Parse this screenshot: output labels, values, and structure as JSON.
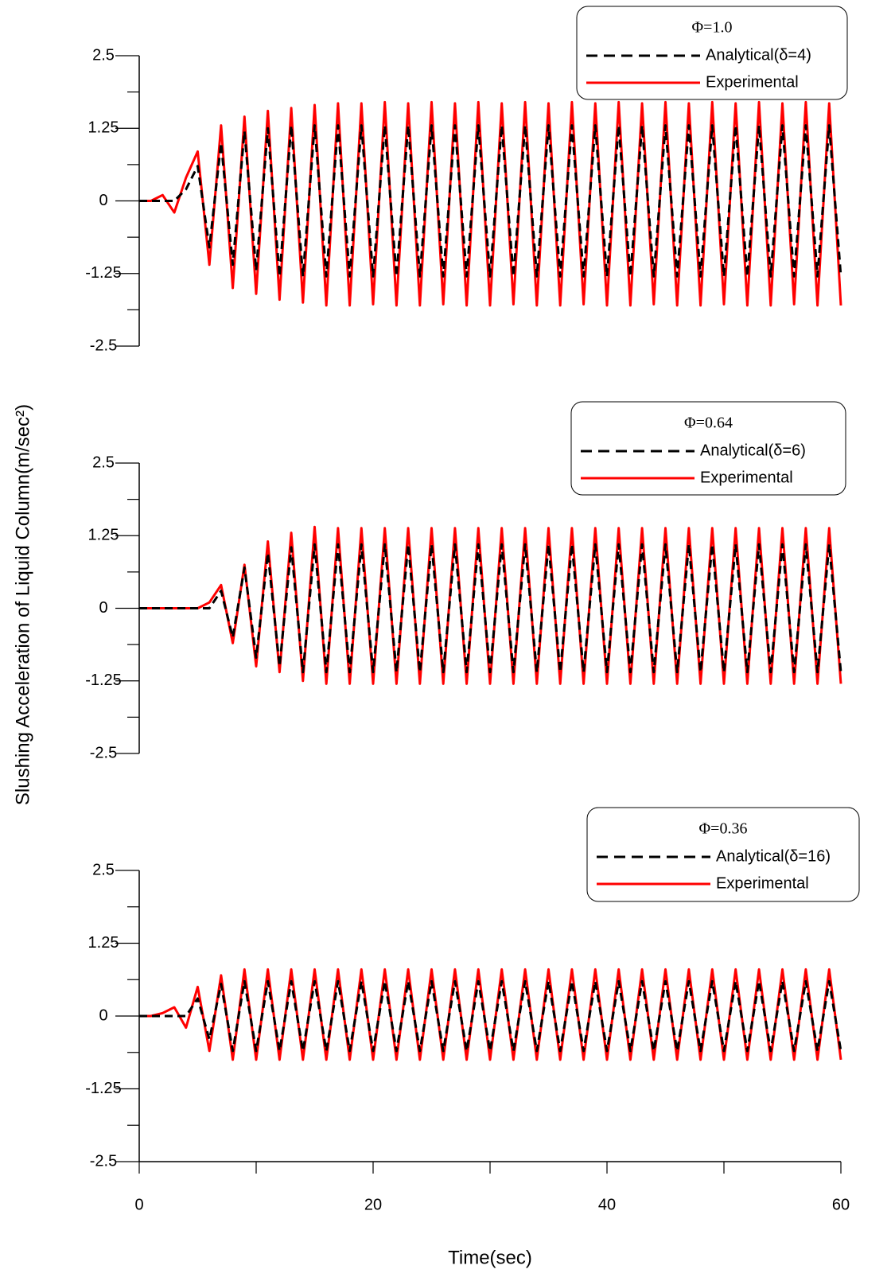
{
  "chart_data": [
    {
      "type": "line",
      "ylabel": "Slushing Acceleration of Liquid Column(m/sec²)",
      "legend_title": "Φ=1.0",
      "x": [
        0,
        1,
        2,
        3,
        4,
        5,
        6,
        7,
        8,
        9,
        10,
        11,
        12,
        13,
        14,
        15,
        16,
        17,
        18,
        19,
        20,
        21,
        22,
        23,
        24,
        25,
        26,
        27,
        28,
        29,
        30,
        31,
        32,
        33,
        34,
        35,
        36,
        37,
        38,
        39,
        40,
        41,
        42,
        43,
        44,
        45,
        46,
        47,
        48,
        49,
        50,
        51,
        52,
        53,
        54,
        55,
        56,
        57,
        58,
        59,
        60
      ],
      "xlim": [
        0,
        60
      ],
      "ylim": [
        -2.5,
        2.5
      ],
      "yticks": [
        -2.5,
        -1.25,
        0,
        1.25,
        2.5
      ],
      "yminorticks": [
        -1.875,
        -0.625,
        0.625,
        1.875
      ],
      "series": [
        {
          "name": "Experimental",
          "color": "#ff0000",
          "values": [
            0,
            0,
            0.1,
            -0.2,
            0.4,
            0.85,
            -1.1,
            1.3,
            -1.5,
            1.45,
            -1.6,
            1.55,
            -1.7,
            1.6,
            -1.75,
            1.65,
            -1.8,
            1.68,
            -1.8,
            1.68,
            -1.78,
            1.7,
            -1.8,
            1.68,
            -1.8,
            1.7,
            -1.78,
            1.68,
            -1.8,
            1.7,
            -1.8,
            1.68,
            -1.78,
            1.7,
            -1.8,
            1.68,
            -1.8,
            1.7,
            -1.78,
            1.68,
            -1.8,
            1.7,
            -1.8,
            1.68,
            -1.78,
            1.7,
            -1.8,
            1.68,
            -1.8,
            1.7,
            -1.78,
            1.68,
            -1.8,
            1.7,
            -1.8,
            1.68,
            -1.78,
            1.7,
            -1.8,
            1.68,
            -1.8
          ]
        },
        {
          "name": "Analytical(δ=4)",
          "color": "#000000",
          "dashed": true,
          "values": [
            0,
            0,
            0,
            0,
            0.2,
            0.6,
            -0.8,
            1.0,
            -1.1,
            1.2,
            -1.2,
            1.25,
            -1.3,
            1.3,
            -1.3,
            1.3,
            -1.3,
            1.3,
            -1.3,
            1.3,
            -1.3,
            1.3,
            -1.3,
            1.3,
            -1.3,
            1.3,
            -1.3,
            1.3,
            -1.3,
            1.3,
            -1.3,
            1.3,
            -1.3,
            1.3,
            -1.3,
            1.3,
            -1.3,
            1.3,
            -1.3,
            1.3,
            -1.3,
            1.3,
            -1.3,
            1.3,
            -1.3,
            1.3,
            -1.3,
            1.3,
            -1.3,
            1.3,
            -1.3,
            1.3,
            -1.3,
            1.3,
            -1.3,
            1.3,
            -1.3,
            1.3,
            -1.3,
            1.3,
            -1.3
          ]
        }
      ]
    },
    {
      "type": "line",
      "legend_title": "Φ=0.64",
      "x": [
        0,
        1,
        2,
        3,
        4,
        5,
        6,
        7,
        8,
        9,
        10,
        11,
        12,
        13,
        14,
        15,
        16,
        17,
        18,
        19,
        20,
        21,
        22,
        23,
        24,
        25,
        26,
        27,
        28,
        29,
        30,
        31,
        32,
        33,
        34,
        35,
        36,
        37,
        38,
        39,
        40,
        41,
        42,
        43,
        44,
        45,
        46,
        47,
        48,
        49,
        50,
        51,
        52,
        53,
        54,
        55,
        56,
        57,
        58,
        59,
        60
      ],
      "xlim": [
        0,
        60
      ],
      "ylim": [
        -2.5,
        2.5
      ],
      "yticks": [
        -2.5,
        -1.25,
        0,
        1.25,
        2.5
      ],
      "yminorticks": [
        -1.875,
        -0.625,
        0.625,
        1.875
      ],
      "series": [
        {
          "name": "Experimental",
          "color": "#ff0000",
          "values": [
            0,
            0,
            0,
            0,
            0,
            0,
            0.1,
            0.4,
            -0.6,
            0.75,
            -1.0,
            1.15,
            -1.1,
            1.3,
            -1.25,
            1.4,
            -1.3,
            1.38,
            -1.3,
            1.38,
            -1.3,
            1.38,
            -1.3,
            1.38,
            -1.3,
            1.38,
            -1.3,
            1.38,
            -1.3,
            1.38,
            -1.3,
            1.38,
            -1.3,
            1.38,
            -1.3,
            1.38,
            -1.3,
            1.38,
            -1.3,
            1.38,
            -1.3,
            1.38,
            -1.3,
            1.38,
            -1.3,
            1.38,
            -1.3,
            1.38,
            -1.3,
            1.38,
            -1.3,
            1.38,
            -1.3,
            1.38,
            -1.3,
            1.38,
            -1.3,
            1.38,
            -1.3,
            1.38,
            -1.3
          ]
        },
        {
          "name": "Analytical(δ=6)",
          "color": "#000000",
          "dashed": true,
          "values": [
            0,
            0,
            0,
            0,
            0,
            0,
            0,
            0.3,
            -0.5,
            0.7,
            -0.85,
            0.95,
            -1.0,
            1.05,
            -1.1,
            1.1,
            -1.1,
            1.1,
            -1.1,
            1.1,
            -1.1,
            1.1,
            -1.1,
            1.1,
            -1.1,
            1.1,
            -1.1,
            1.1,
            -1.1,
            1.1,
            -1.1,
            1.1,
            -1.1,
            1.1,
            -1.1,
            1.1,
            -1.1,
            1.1,
            -1.1,
            1.1,
            -1.1,
            1.1,
            -1.1,
            1.1,
            -1.1,
            1.1,
            -1.1,
            1.1,
            -1.1,
            1.1,
            -1.1,
            1.1,
            -1.1,
            1.1,
            -1.1,
            1.1,
            -1.1,
            1.1,
            -1.1,
            1.1,
            -1.1
          ]
        }
      ]
    },
    {
      "type": "line",
      "legend_title": "Φ=0.36",
      "xlabel": "Time(sec)",
      "x": [
        0,
        1,
        2,
        3,
        4,
        5,
        6,
        7,
        8,
        9,
        10,
        11,
        12,
        13,
        14,
        15,
        16,
        17,
        18,
        19,
        20,
        21,
        22,
        23,
        24,
        25,
        26,
        27,
        28,
        29,
        30,
        31,
        32,
        33,
        34,
        35,
        36,
        37,
        38,
        39,
        40,
        41,
        42,
        43,
        44,
        45,
        46,
        47,
        48,
        49,
        50,
        51,
        52,
        53,
        54,
        55,
        56,
        57,
        58,
        59,
        60
      ],
      "xlim": [
        0,
        60
      ],
      "xticks": [
        0,
        20,
        40,
        60
      ],
      "xminorticks": [
        10,
        30,
        50
      ],
      "ylim": [
        -2.5,
        2.5
      ],
      "yticks": [
        -2.5,
        -1.25,
        0,
        1.25,
        2.5
      ],
      "yminorticks": [
        -1.875,
        -0.625,
        0.625,
        1.875
      ],
      "series": [
        {
          "name": "Experimental",
          "color": "#ff0000",
          "values": [
            0,
            0,
            0.05,
            0.15,
            -0.2,
            0.5,
            -0.6,
            0.7,
            -0.75,
            0.8,
            -0.75,
            0.8,
            -0.75,
            0.8,
            -0.75,
            0.8,
            -0.75,
            0.8,
            -0.75,
            0.8,
            -0.75,
            0.8,
            -0.75,
            0.8,
            -0.75,
            0.8,
            -0.75,
            0.8,
            -0.75,
            0.8,
            -0.75,
            0.8,
            -0.75,
            0.8,
            -0.75,
            0.8,
            -0.75,
            0.8,
            -0.75,
            0.8,
            -0.75,
            0.8,
            -0.75,
            0.8,
            -0.75,
            0.8,
            -0.75,
            0.8,
            -0.75,
            0.8,
            -0.75,
            0.8,
            -0.75,
            0.8,
            -0.75,
            0.8,
            -0.75,
            0.8,
            -0.75,
            0.8,
            -0.75
          ]
        },
        {
          "name": "Analytical(δ=16)",
          "color": "#000000",
          "dashed": true,
          "values": [
            0,
            0,
            0,
            0,
            0,
            0.3,
            -0.4,
            0.55,
            -0.6,
            0.6,
            -0.6,
            0.6,
            -0.6,
            0.6,
            -0.6,
            0.6,
            -0.6,
            0.6,
            -0.6,
            0.6,
            -0.6,
            0.6,
            -0.6,
            0.6,
            -0.6,
            0.6,
            -0.6,
            0.6,
            -0.6,
            0.6,
            -0.6,
            0.6,
            -0.6,
            0.6,
            -0.6,
            0.6,
            -0.6,
            0.6,
            -0.6,
            0.6,
            -0.6,
            0.6,
            -0.6,
            0.6,
            -0.6,
            0.6,
            -0.6,
            0.6,
            -0.6,
            0.6,
            -0.6,
            0.6,
            -0.6,
            0.6,
            -0.6,
            0.6,
            -0.6,
            0.6,
            -0.6,
            0.6,
            -0.6
          ]
        }
      ]
    }
  ]
}
